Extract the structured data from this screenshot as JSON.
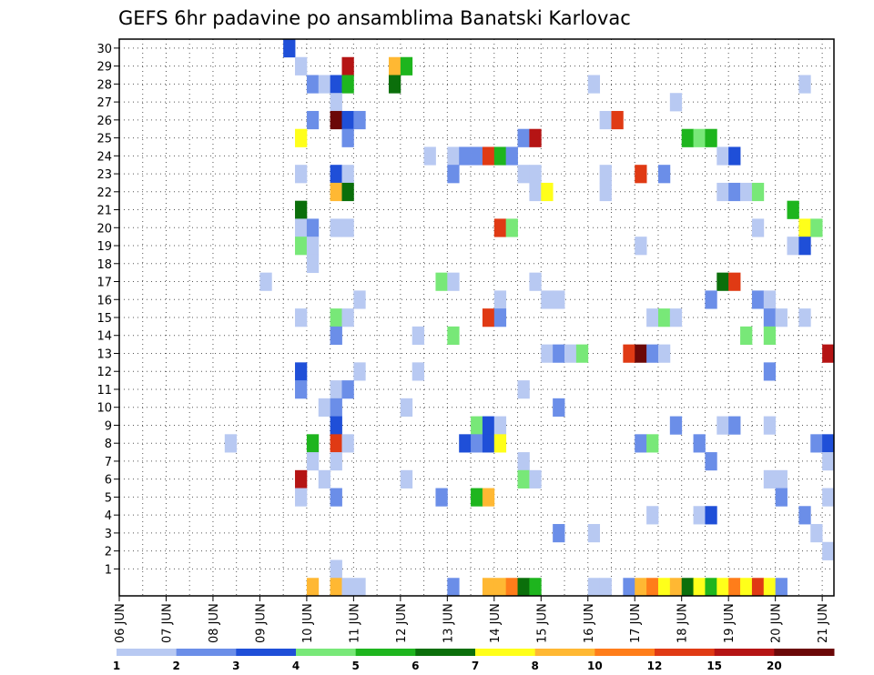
{
  "chart_data": {
    "type": "heatmap",
    "title": "GEFS 6hr padavine po ansamblima Banatski Karlovac",
    "xlabel": "",
    "ylabel": "",
    "x_tick_labels": [
      "06 JUN",
      "07 JUN",
      "08 JUN",
      "09 JUN",
      "10 JUN",
      "11 JUN",
      "12 JUN",
      "13 JUN",
      "14 JUN",
      "15 JUN",
      "16 JUN",
      "17 JUN",
      "18 JUN",
      "19 JUN",
      "20 JUN",
      "21 JUN"
    ],
    "y_tick_labels": [
      "1",
      "2",
      "3",
      "4",
      "5",
      "6",
      "7",
      "8",
      "9",
      "10",
      "11",
      "12",
      "13",
      "14",
      "15",
      "16",
      "17",
      "18",
      "19",
      "20",
      "21",
      "22",
      "23",
      "24",
      "25",
      "26",
      "27",
      "28",
      "29",
      "30"
    ],
    "x_unit": "6-hour step (4 per day, starting 06 JUN 00)",
    "members": 30,
    "steps": 61,
    "grid": "dotted",
    "colorbar": {
      "position": "bottom",
      "labels": [
        "1",
        "2",
        "3",
        "4",
        "5",
        "6",
        "7",
        "8",
        "10",
        "12",
        "15",
        "20"
      ],
      "colors": [
        "#b8c9f2",
        "#6b8ee8",
        "#1f4fd8",
        "#78e878",
        "#1eb51e",
        "#0b6f0b",
        "#ffff1a",
        "#ffb833",
        "#ff7d1a",
        "#e03a14",
        "#b51414",
        "#6b0808"
      ]
    },
    "level_colors": [
      "#b8c9f2",
      "#6b8ee8",
      "#1f4fd8",
      "#78e878",
      "#1eb51e",
      "#0b6f0b",
      "#ffff1a",
      "#ffb833",
      "#ff7d1a",
      "#e03a14",
      "#b51414",
      "#6b0808"
    ],
    "cells_note": "each entry: [member, step, color level index 0-11]",
    "cells": [
      [
        30,
        14,
        2
      ],
      [
        29,
        15,
        0
      ],
      [
        29,
        19,
        10
      ],
      [
        29,
        23,
        7
      ],
      [
        29,
        24,
        4
      ],
      [
        28,
        16,
        1
      ],
      [
        28,
        17,
        0
      ],
      [
        28,
        18,
        2
      ],
      [
        28,
        19,
        4
      ],
      [
        28,
        23,
        5
      ],
      [
        28,
        40,
        0
      ],
      [
        28,
        58,
        0
      ],
      [
        27,
        18,
        0
      ],
      [
        27,
        47,
        0
      ],
      [
        26,
        16,
        1
      ],
      [
        26,
        18,
        11
      ],
      [
        26,
        19,
        2
      ],
      [
        26,
        20,
        1
      ],
      [
        26,
        41,
        0
      ],
      [
        26,
        42,
        9
      ],
      [
        25,
        15,
        6
      ],
      [
        25,
        19,
        1
      ],
      [
        25,
        34,
        1
      ],
      [
        25,
        35,
        10
      ],
      [
        25,
        48,
        4
      ],
      [
        25,
        49,
        3
      ],
      [
        25,
        50,
        4
      ],
      [
        24,
        26,
        0
      ],
      [
        24,
        28,
        0
      ],
      [
        24,
        29,
        1
      ],
      [
        24,
        30,
        1
      ],
      [
        24,
        31,
        9
      ],
      [
        24,
        32,
        4
      ],
      [
        24,
        33,
        1
      ],
      [
        24,
        51,
        0
      ],
      [
        24,
        52,
        2
      ],
      [
        23,
        15,
        0
      ],
      [
        23,
        18,
        2
      ],
      [
        23,
        19,
        0
      ],
      [
        23,
        28,
        1
      ],
      [
        23,
        34,
        0
      ],
      [
        23,
        35,
        0
      ],
      [
        23,
        41,
        0
      ],
      [
        23,
        44,
        9
      ],
      [
        23,
        46,
        1
      ],
      [
        22,
        18,
        7
      ],
      [
        22,
        19,
        5
      ],
      [
        22,
        35,
        0
      ],
      [
        22,
        36,
        6
      ],
      [
        22,
        41,
        0
      ],
      [
        22,
        51,
        0
      ],
      [
        22,
        52,
        1
      ],
      [
        22,
        53,
        0
      ],
      [
        22,
        54,
        3
      ],
      [
        21,
        15,
        5
      ],
      [
        21,
        57,
        4
      ],
      [
        20,
        15,
        0
      ],
      [
        20,
        16,
        1
      ],
      [
        20,
        18,
        0
      ],
      [
        20,
        19,
        0
      ],
      [
        20,
        32,
        9
      ],
      [
        20,
        33,
        3
      ],
      [
        20,
        54,
        0
      ],
      [
        20,
        58,
        6
      ],
      [
        20,
        59,
        3
      ],
      [
        19,
        15,
        3
      ],
      [
        19,
        16,
        0
      ],
      [
        19,
        44,
        0
      ],
      [
        19,
        57,
        0
      ],
      [
        19,
        58,
        2
      ],
      [
        18,
        16,
        0
      ],
      [
        17,
        12,
        0
      ],
      [
        17,
        27,
        3
      ],
      [
        17,
        28,
        0
      ],
      [
        17,
        35,
        0
      ],
      [
        17,
        51,
        5
      ],
      [
        17,
        52,
        9
      ],
      [
        16,
        20,
        0
      ],
      [
        16,
        32,
        0
      ],
      [
        16,
        36,
        0
      ],
      [
        16,
        37,
        0
      ],
      [
        16,
        50,
        1
      ],
      [
        16,
        54,
        1
      ],
      [
        16,
        55,
        0
      ],
      [
        15,
        15,
        0
      ],
      [
        15,
        18,
        3
      ],
      [
        15,
        19,
        0
      ],
      [
        15,
        31,
        9
      ],
      [
        15,
        32,
        1
      ],
      [
        15,
        45,
        0
      ],
      [
        15,
        46,
        3
      ],
      [
        15,
        47,
        0
      ],
      [
        15,
        55,
        1
      ],
      [
        15,
        56,
        0
      ],
      [
        15,
        58,
        0
      ],
      [
        14,
        18,
        1
      ],
      [
        14,
        25,
        0
      ],
      [
        14,
        28,
        3
      ],
      [
        14,
        53,
        3
      ],
      [
        14,
        55,
        3
      ],
      [
        13,
        36,
        0
      ],
      [
        13,
        37,
        1
      ],
      [
        13,
        38,
        0
      ],
      [
        13,
        39,
        3
      ],
      [
        13,
        43,
        9
      ],
      [
        13,
        44,
        11
      ],
      [
        13,
        45,
        1
      ],
      [
        13,
        46,
        0
      ],
      [
        13,
        60,
        10
      ],
      [
        12,
        15,
        2
      ],
      [
        12,
        20,
        0
      ],
      [
        12,
        25,
        0
      ],
      [
        12,
        55,
        1
      ],
      [
        11,
        15,
        1
      ],
      [
        11,
        18,
        0
      ],
      [
        11,
        19,
        1
      ],
      [
        11,
        34,
        0
      ],
      [
        10,
        17,
        0
      ],
      [
        10,
        18,
        1
      ],
      [
        10,
        24,
        0
      ],
      [
        10,
        37,
        1
      ],
      [
        9,
        18,
        2
      ],
      [
        9,
        30,
        3
      ],
      [
        9,
        31,
        2
      ],
      [
        9,
        32,
        0
      ],
      [
        9,
        47,
        1
      ],
      [
        9,
        51,
        0
      ],
      [
        9,
        52,
        1
      ],
      [
        9,
        55,
        0
      ],
      [
        8,
        9,
        0
      ],
      [
        8,
        16,
        4
      ],
      [
        8,
        18,
        9
      ],
      [
        8,
        19,
        0
      ],
      [
        8,
        29,
        2
      ],
      [
        8,
        30,
        1
      ],
      [
        8,
        31,
        2
      ],
      [
        8,
        32,
        6
      ],
      [
        8,
        44,
        1
      ],
      [
        8,
        45,
        3
      ],
      [
        8,
        49,
        1
      ],
      [
        8,
        59,
        1
      ],
      [
        8,
        60,
        2
      ],
      [
        7,
        16,
        0
      ],
      [
        7,
        18,
        0
      ],
      [
        7,
        34,
        0
      ],
      [
        7,
        50,
        1
      ],
      [
        7,
        60,
        0
      ],
      [
        6,
        15,
        10
      ],
      [
        6,
        17,
        0
      ],
      [
        6,
        24,
        0
      ],
      [
        6,
        34,
        3
      ],
      [
        6,
        35,
        0
      ],
      [
        6,
        55,
        0
      ],
      [
        6,
        56,
        0
      ],
      [
        5,
        15,
        0
      ],
      [
        5,
        18,
        1
      ],
      [
        5,
        27,
        1
      ],
      [
        5,
        30,
        4
      ],
      [
        5,
        31,
        7
      ],
      [
        5,
        56,
        1
      ],
      [
        5,
        60,
        0
      ],
      [
        4,
        45,
        0
      ],
      [
        4,
        49,
        0
      ],
      [
        4,
        50,
        2
      ],
      [
        4,
        58,
        1
      ],
      [
        3,
        37,
        1
      ],
      [
        3,
        40,
        0
      ],
      [
        3,
        59,
        0
      ],
      [
        2,
        60,
        0
      ],
      [
        1,
        18,
        0
      ],
      [
        0,
        16,
        7
      ],
      [
        0,
        18,
        7
      ],
      [
        0,
        19,
        0
      ],
      [
        0,
        20,
        0
      ],
      [
        0,
        28,
        1
      ],
      [
        0,
        31,
        7
      ],
      [
        0,
        32,
        7
      ],
      [
        0,
        33,
        8
      ],
      [
        0,
        34,
        5
      ],
      [
        0,
        35,
        4
      ],
      [
        0,
        40,
        0
      ],
      [
        0,
        41,
        0
      ],
      [
        0,
        43,
        1
      ],
      [
        0,
        44,
        7
      ],
      [
        0,
        45,
        8
      ],
      [
        0,
        46,
        6
      ],
      [
        0,
        47,
        7
      ],
      [
        0,
        48,
        5
      ],
      [
        0,
        49,
        6
      ],
      [
        0,
        50,
        4
      ],
      [
        0,
        51,
        6
      ],
      [
        0,
        52,
        8
      ],
      [
        0,
        53,
        6
      ],
      [
        0,
        54,
        9
      ],
      [
        0,
        55,
        6
      ],
      [
        0,
        56,
        1
      ]
    ]
  }
}
